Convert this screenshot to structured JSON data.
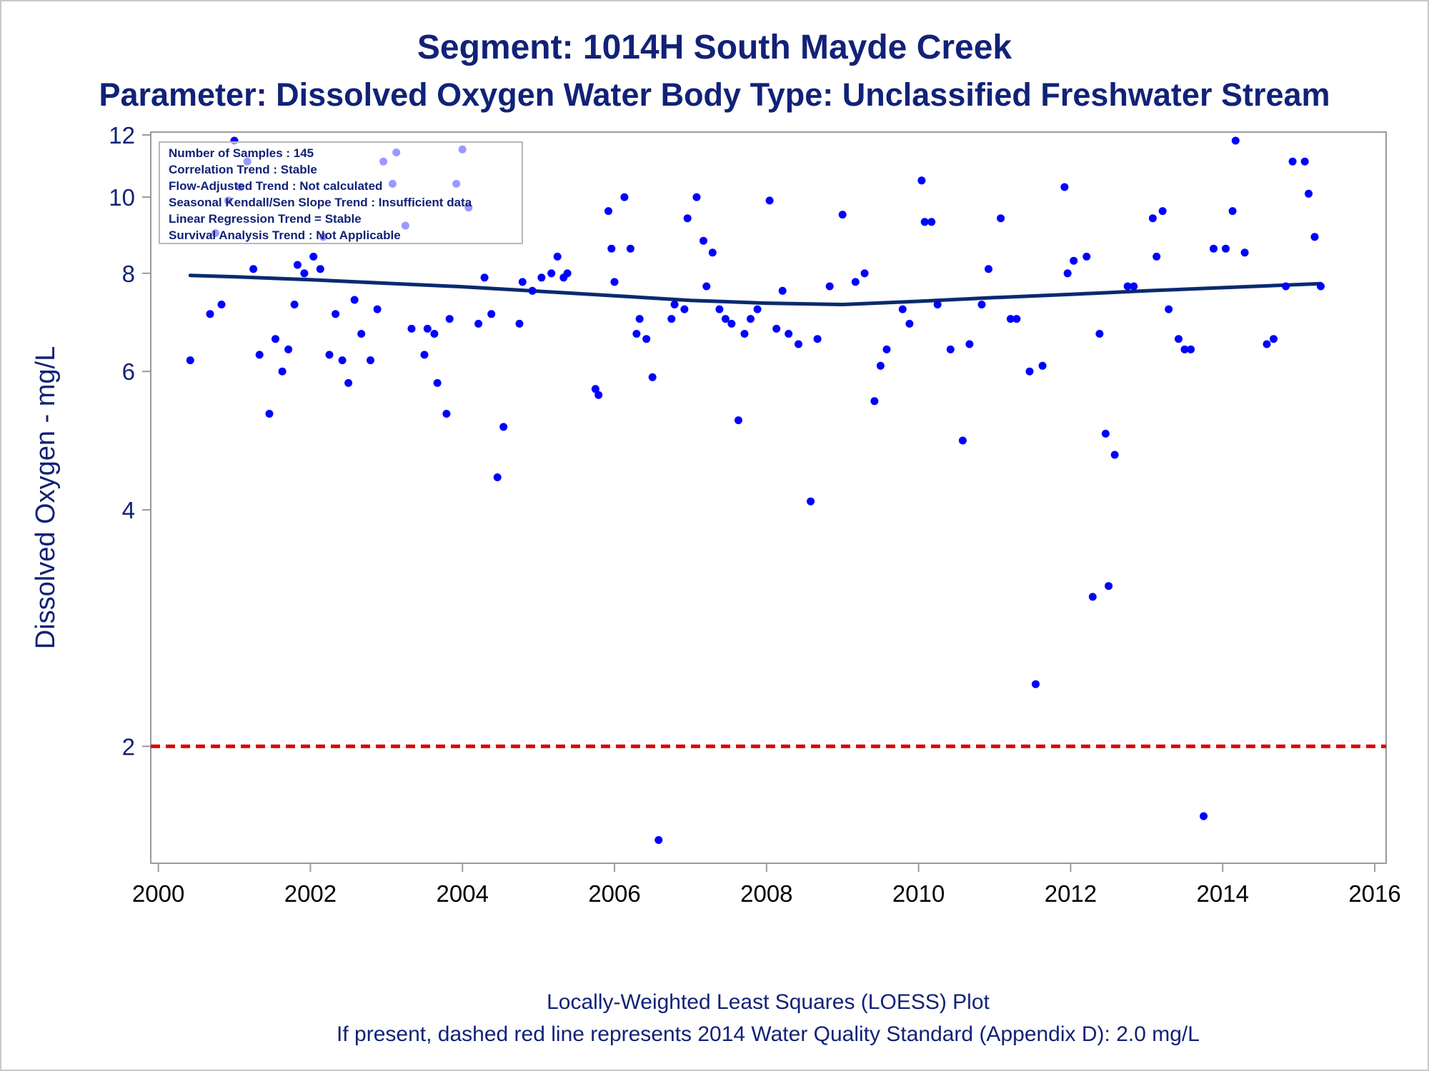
{
  "chart_data": {
    "type": "scatter",
    "title": "Segment: 1014H  South Mayde Creek",
    "subtitle": "Parameter: Dissolved Oxygen   Water Body Type: Unclassified Freshwater Stream",
    "xlabel": "",
    "ylabel": "Dissolved Oxygen - mg/L",
    "x_scale": "linear (date, years)",
    "y_scale": "log",
    "xlim": [
      1999.9,
      2016.15
    ],
    "ylim": [
      1.42,
      12.1
    ],
    "x_ticks": [
      2000,
      2002,
      2004,
      2006,
      2008,
      2010,
      2012,
      2014,
      2016
    ],
    "x_tick_labels": [
      "2000",
      "2002",
      "2004",
      "2006",
      "2008",
      "2010",
      "2012",
      "2014",
      "2016"
    ],
    "y_ticks": [
      2,
      4,
      6,
      8,
      10,
      12
    ],
    "y_tick_labels": [
      "2",
      "4",
      "6",
      "8",
      "10",
      "12"
    ],
    "grid": false,
    "point_color": "#0000ff",
    "series": [
      {
        "type": "scatter",
        "points": [
          [
            2000.42,
            6.2
          ],
          [
            2000.68,
            7.1
          ],
          [
            2000.75,
            9.0
          ],
          [
            2000.83,
            7.3
          ],
          [
            2000.92,
            9.9
          ],
          [
            2001.0,
            11.8
          ],
          [
            2001.08,
            10.3
          ],
          [
            2001.17,
            11.1
          ],
          [
            2001.25,
            8.1
          ],
          [
            2001.33,
            6.3
          ],
          [
            2001.46,
            5.3
          ],
          [
            2001.54,
            6.6
          ],
          [
            2001.63,
            6.0
          ],
          [
            2001.71,
            6.4
          ],
          [
            2001.79,
            7.3
          ],
          [
            2001.83,
            8.2
          ],
          [
            2001.92,
            8.0
          ],
          [
            2002.04,
            8.4
          ],
          [
            2002.13,
            8.1
          ],
          [
            2002.17,
            8.9
          ],
          [
            2002.25,
            6.3
          ],
          [
            2002.33,
            7.1
          ],
          [
            2002.42,
            6.2
          ],
          [
            2002.5,
            5.8
          ],
          [
            2002.58,
            7.4
          ],
          [
            2002.67,
            6.7
          ],
          [
            2002.79,
            6.2
          ],
          [
            2002.88,
            7.2
          ],
          [
            2002.96,
            11.1
          ],
          [
            2003.08,
            10.4
          ],
          [
            2003.13,
            11.4
          ],
          [
            2003.25,
            9.2
          ],
          [
            2003.33,
            6.8
          ],
          [
            2003.5,
            6.3
          ],
          [
            2003.54,
            6.8
          ],
          [
            2003.63,
            6.7
          ],
          [
            2003.67,
            5.8
          ],
          [
            2003.79,
            5.3
          ],
          [
            2003.83,
            7.0
          ],
          [
            2003.92,
            10.4
          ],
          [
            2004.0,
            11.5
          ],
          [
            2004.08,
            9.7
          ],
          [
            2004.21,
            6.9
          ],
          [
            2004.29,
            7.9
          ],
          [
            2004.38,
            7.1
          ],
          [
            2004.46,
            4.4
          ],
          [
            2004.54,
            5.1
          ],
          [
            2004.75,
            6.9
          ],
          [
            2004.79,
            7.8
          ],
          [
            2004.92,
            7.6
          ],
          [
            2005.04,
            7.9
          ],
          [
            2005.17,
            8.0
          ],
          [
            2005.25,
            8.4
          ],
          [
            2005.33,
            7.9
          ],
          [
            2005.38,
            8.0
          ],
          [
            2005.75,
            5.7
          ],
          [
            2005.79,
            5.6
          ],
          [
            2005.92,
            9.6
          ],
          [
            2005.96,
            8.6
          ],
          [
            2006.0,
            7.8
          ],
          [
            2006.13,
            10.0
          ],
          [
            2006.21,
            8.6
          ],
          [
            2006.29,
            6.7
          ],
          [
            2006.33,
            7.0
          ],
          [
            2006.42,
            6.6
          ],
          [
            2006.5,
            5.9
          ],
          [
            2006.58,
            1.52
          ],
          [
            2006.75,
            7.0
          ],
          [
            2006.79,
            7.3
          ],
          [
            2006.92,
            7.2
          ],
          [
            2006.96,
            9.4
          ],
          [
            2007.08,
            10.0
          ],
          [
            2007.17,
            8.8
          ],
          [
            2007.21,
            7.7
          ],
          [
            2007.29,
            8.5
          ],
          [
            2007.38,
            7.2
          ],
          [
            2007.46,
            7.0
          ],
          [
            2007.54,
            6.9
          ],
          [
            2007.63,
            5.2
          ],
          [
            2007.71,
            6.7
          ],
          [
            2007.79,
            7.0
          ],
          [
            2007.88,
            7.2
          ],
          [
            2008.04,
            9.9
          ],
          [
            2008.13,
            6.8
          ],
          [
            2008.21,
            7.6
          ],
          [
            2008.29,
            6.7
          ],
          [
            2008.42,
            6.5
          ],
          [
            2008.58,
            4.1
          ],
          [
            2008.67,
            6.6
          ],
          [
            2008.83,
            7.7
          ],
          [
            2009.0,
            9.5
          ],
          [
            2009.17,
            7.8
          ],
          [
            2009.29,
            8.0
          ],
          [
            2009.42,
            5.5
          ],
          [
            2009.5,
            6.1
          ],
          [
            2009.58,
            6.4
          ],
          [
            2009.79,
            7.2
          ],
          [
            2009.88,
            6.9
          ],
          [
            2010.04,
            10.5
          ],
          [
            2010.08,
            9.3
          ],
          [
            2010.17,
            9.3
          ],
          [
            2010.25,
            7.3
          ],
          [
            2010.42,
            6.4
          ],
          [
            2010.58,
            4.9
          ],
          [
            2010.67,
            6.5
          ],
          [
            2010.83,
            7.3
          ],
          [
            2010.92,
            8.1
          ],
          [
            2011.08,
            9.4
          ],
          [
            2011.21,
            7.0
          ],
          [
            2011.29,
            7.0
          ],
          [
            2011.46,
            6.0
          ],
          [
            2011.54,
            2.4
          ],
          [
            2011.63,
            6.1
          ],
          [
            2011.92,
            10.3
          ],
          [
            2011.96,
            8.0
          ],
          [
            2012.04,
            8.3
          ],
          [
            2012.21,
            8.4
          ],
          [
            2012.29,
            3.1
          ],
          [
            2012.38,
            6.7
          ],
          [
            2012.46,
            5.0
          ],
          [
            2012.5,
            3.2
          ],
          [
            2012.58,
            4.7
          ],
          [
            2012.75,
            7.7
          ],
          [
            2012.83,
            7.7
          ],
          [
            2013.08,
            9.4
          ],
          [
            2013.13,
            8.4
          ],
          [
            2013.21,
            9.6
          ],
          [
            2013.29,
            7.2
          ],
          [
            2013.42,
            6.6
          ],
          [
            2013.5,
            6.4
          ],
          [
            2013.58,
            6.4
          ],
          [
            2013.75,
            1.63
          ],
          [
            2013.88,
            8.6
          ],
          [
            2014.04,
            8.6
          ],
          [
            2014.13,
            9.6
          ],
          [
            2014.17,
            11.8
          ],
          [
            2014.29,
            8.5
          ],
          [
            2014.58,
            6.5
          ],
          [
            2014.67,
            6.6
          ],
          [
            2014.83,
            7.7
          ],
          [
            2014.92,
            11.1
          ],
          [
            2015.08,
            11.1
          ],
          [
            2015.13,
            10.1
          ],
          [
            2015.21,
            8.9
          ],
          [
            2015.29,
            7.7
          ]
        ]
      },
      {
        "type": "line",
        "style": "LOESS smooth",
        "color": "#0a2a6e",
        "points": [
          [
            2000.42,
            7.95
          ],
          [
            2001.0,
            7.92
          ],
          [
            2002.0,
            7.85
          ],
          [
            2003.0,
            7.77
          ],
          [
            2004.0,
            7.69
          ],
          [
            2005.0,
            7.59
          ],
          [
            2006.0,
            7.49
          ],
          [
            2007.0,
            7.39
          ],
          [
            2008.0,
            7.33
          ],
          [
            2009.0,
            7.3
          ],
          [
            2010.0,
            7.37
          ],
          [
            2011.0,
            7.45
          ],
          [
            2012.0,
            7.52
          ],
          [
            2013.0,
            7.6
          ],
          [
            2014.0,
            7.67
          ],
          [
            2015.29,
            7.76
          ]
        ]
      },
      {
        "type": "hline",
        "style": "dashed",
        "color": "#dd0000",
        "y": 2.0
      }
    ],
    "legend_box": {
      "position": "top-left",
      "lines": [
        "Number of Samples : 145",
        "Correlation Trend : Stable",
        "Flow-Adjusted Trend : Not calculated",
        "Seasonal Kendall/Sen Slope Trend : Insufficient data",
        "Linear Regression Trend = Stable",
        "Survival Analysis Trend : Not Applicable"
      ]
    },
    "footnotes": [
      "Locally-Weighted Least Squares (LOESS) Plot",
      "If present, dashed red line represents 2014 Water Quality Standard (Appendix D): 2.0 mg/L"
    ]
  }
}
